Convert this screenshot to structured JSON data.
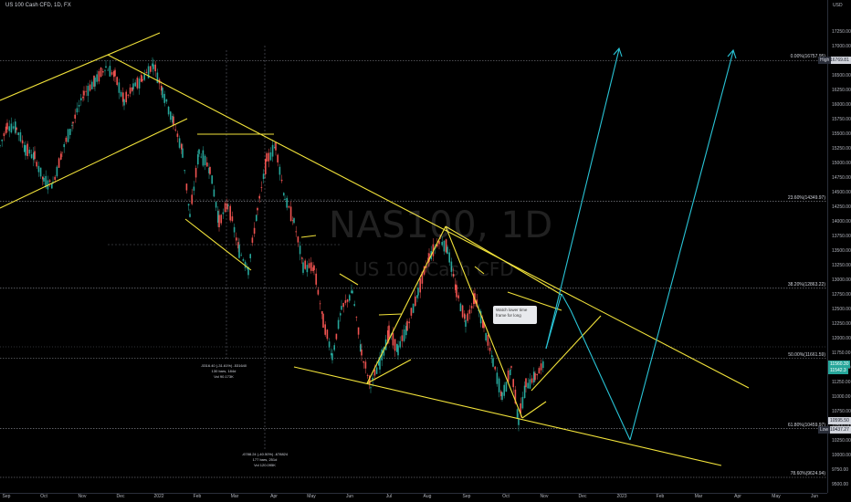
{
  "header": {
    "symbol_title": "US 100 Cash CFD, 1D, FX"
  },
  "watermark": {
    "symbol": "NAS100, 1D",
    "description": "US 100 Cash CFD"
  },
  "price_axis": {
    "currency": "USD",
    "ticks": [
      "17250.00",
      "17000.00",
      "16750.00",
      "16500.00",
      "16250.00",
      "16000.00",
      "15750.00",
      "15500.00",
      "15250.00",
      "15000.00",
      "14750.00",
      "14500.00",
      "14250.00",
      "14000.00",
      "13750.00",
      "13500.00",
      "13250.00",
      "13000.00",
      "12750.00",
      "12500.00",
      "12250.00",
      "12000.00",
      "11750.00",
      "11500.00",
      "11250.00",
      "11000.00",
      "10750.00",
      "10500.00",
      "10250.00",
      "10000.00",
      "9750.00",
      "9500.00"
    ],
    "labels": [
      {
        "text": "16769.81",
        "tag": "High",
        "color": "#1e222d",
        "price": 16769.81
      },
      {
        "text": "11560.30",
        "sub": "11542.3",
        "color": "#26a69a",
        "price": 11560.3
      },
      {
        "text": "10595.50",
        "color": "#1e222d",
        "price": 10595.5
      },
      {
        "text": "10437.27",
        "tag": "Low",
        "color": "#1e222d",
        "price": 10437.27
      }
    ]
  },
  "time_axis": [
    "Sep",
    "Oct",
    "Nov",
    "Dec",
    "2022",
    "Feb",
    "Mar",
    "Apr",
    "May",
    "Jun",
    "Jul",
    "Aug",
    "Sep",
    "Oct",
    "Nov",
    "Dec",
    "2023",
    "Feb",
    "Mar",
    "Apr",
    "May",
    "Jun"
  ],
  "fib_levels": [
    {
      "label": "0.00%(16757.95)",
      "price": 16758
    },
    {
      "label": "23.60%(14349.97)",
      "price": 14350
    },
    {
      "label": "38.20%(12863.22)",
      "price": 12863
    },
    {
      "label": "50.00%(11661.59)",
      "price": 11662
    },
    {
      "label": "61.80%(10459.97)",
      "price": 10460
    },
    {
      "label": "78.60%(9624.94)",
      "price": 9625
    }
  ],
  "note": {
    "text": "Watch lower time frame for long"
  },
  "measurements": [
    {
      "line1": "-5316.40 (-31.61%) -531640",
      "line2": "130 bars, 184d",
      "line3": "Vol 90.173K"
    },
    {
      "line1": "-6788.24 (-40.50%) -678824",
      "line2": "177 bars, 251d",
      "line3": "Vol 120.095K"
    }
  ],
  "colors": {
    "up": "#26a69a",
    "down": "#ef5350",
    "trend": "#f2e33a",
    "projection": "#29c4d6",
    "bg": "#000000"
  },
  "chart_data": {
    "type": "candlestick",
    "title": "US 100 Cash CFD, 1D",
    "ylabel": "USD",
    "ylim": [
      9500,
      17250
    ],
    "x": [
      "Sep",
      "Oct",
      "Nov",
      "Dec",
      "2022",
      "Feb",
      "Mar",
      "Apr",
      "May",
      "Jun",
      "Jul",
      "Aug",
      "Sep",
      "Oct",
      "Nov"
    ],
    "close": [
      15400,
      15000,
      16300,
      16500,
      15500,
      14300,
      13600,
      14400,
      12300,
      11700,
      12200,
      13500,
      12100,
      11200,
      11560
    ],
    "high": 16769.81,
    "low": 10437.27,
    "last": 11560.3
  }
}
